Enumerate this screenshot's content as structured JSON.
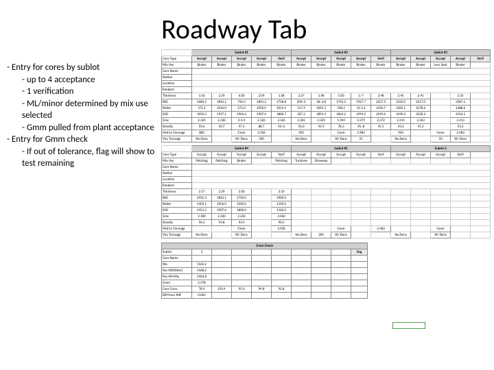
{
  "title": "Roadway Tab",
  "bullets": {
    "b1": "Entry for cores by sublot",
    "b1a": "up to 4 acceptance",
    "b1b": "1 verification",
    "b1c": "ML/minor determined by mix use selected",
    "b1d": "Gmm pulled from plant acceptance",
    "b2": "Entry for Gmm check",
    "b2a": "If out of tolerance, flag will show to test remaining"
  },
  "sublots": {
    "group_labels": [
      "Sublot #1",
      "Sublot #2",
      "Sublot #3"
    ],
    "col_labels": [
      "Accept",
      "Accept",
      "Accept",
      "Accept",
      "Verif"
    ],
    "row_labels": [
      "Core Type",
      "Mix Use",
      "Core Name",
      "Station",
      "Location",
      "Random",
      "Thickness",
      "BSG",
      "Water",
      "SSD",
      "Gmc",
      "Density",
      "Mat-Ln Tonnage",
      "Visc Tonnage"
    ],
    "row1": {
      "ct": [
        "Binder",
        "Binder",
        "Binder",
        "Binder",
        "Binder",
        "Binder",
        "Binder",
        "Binder",
        "Binder",
        "Binder",
        "Binder",
        "Binder",
        "Lens Spot",
        "Binder"
      ],
      "thk": [
        "1.56",
        "2.29",
        "6.00",
        "2.09",
        "1.58",
        "2.27",
        "1.98",
        "5.00",
        "2.-7",
        "2.48",
        "2.45",
        "2.41",
        "",
        "2.35"
      ],
      "bsg": [
        "1684.2",
        "1812.1",
        "750.3",
        "1891.2",
        "1758.8",
        "204.-3",
        "18.-3.8",
        "1750.2",
        "1927.7",
        "2227.5",
        "2322.0",
        "2217.0",
        "",
        "2387.1"
      ],
      "water": [
        "371.1",
        "1016.0",
        "275.0",
        "1050.0",
        "1031.4",
        "117.4",
        "1045.3",
        "598.2",
        "11-3.1",
        "1296.7",
        "1281.5",
        "1278.6",
        "",
        "1388.6"
      ],
      "ssd": [
        "1095.5",
        "1917.1",
        "1901.6",
        "1907.6",
        "1800.7",
        "207.2",
        "1891.4",
        "1824.2",
        "1944.2",
        "2249.6",
        "2340.3",
        "2230.3",
        "",
        "2412.5"
      ],
      "gmc": [
        "2.324",
        "2.330",
        "2.4-4",
        "2.326",
        "2.326",
        "2.302",
        "2.329",
        "1.944",
        "2.379",
        "2.372",
        "2.314",
        "2.363",
        "",
        "2.313"
      ],
      "den": [
        "93.6",
        "93.7",
        "97.1",
        "88.7",
        "93.-6",
        "93.0",
        "93.9",
        "78.3",
        "95.-8",
        "95.5",
        "93.2",
        "95.2",
        "",
        "93.2"
      ],
      "mlt": [
        "800",
        "",
        "Gmm",
        "2.436",
        "",
        "950",
        "",
        "Gmm",
        "2.483",
        "",
        "950",
        "",
        "Gmm",
        "2.483"
      ],
      "vt": [
        "No Dens",
        "",
        "W/ Dens",
        "500",
        "",
        "No Dens",
        "",
        "W/ Dens",
        "55",
        "",
        "No Dens",
        "",
        "50",
        "W/ Dens"
      ]
    },
    "group_labels2": [
      "Sublot #4",
      "Sublot #5",
      "Sublot 6"
    ],
    "row2": {
      "ct": [
        "Accept",
        "Accept",
        "Accept",
        "Accept",
        "Verif",
        "Accept",
        "Accept",
        "Accept",
        "Accept",
        "Verif",
        "Accept",
        "Accept",
        "Accept",
        "Verif"
      ],
      "mu": [
        "Patching",
        "Patching",
        "Binder",
        "",
        "Patching",
        "Turnlane",
        "Driveway",
        "",
        "",
        "",
        "",
        "",
        "",
        ""
      ],
      "thk": [
        "2.17",
        "2.29",
        "2.00",
        "",
        "2.10",
        "",
        "",
        "",
        "",
        "",
        "",
        "",
        "",
        ""
      ],
      "bsg": [
        "2415.3",
        "1812.1",
        "1750.0",
        "",
        "1900.0",
        "",
        "",
        "",
        "",
        "",
        "",
        "",
        "",
        ""
      ],
      "water": [
        "1401.1",
        "1056.0",
        "1020.0",
        "",
        "1120.0",
        "",
        "",
        "",
        "",
        "",
        "",
        "",
        "",
        ""
      ],
      "ssd": [
        "2451.5",
        "1907.6",
        "1800.0",
        "",
        "1120.0",
        "",
        "",
        "",
        "",
        "",
        "",
        "",
        "",
        ""
      ],
      "gmc": [
        "2.300",
        "2.330",
        "2.250",
        "",
        "2.050",
        "",
        "",
        "",
        "",
        "",
        "",
        "",
        "",
        ""
      ],
      "den": [
        "96.3",
        "93.8",
        "93.9",
        "",
        "90.5",
        "",
        "",
        "",
        "",
        "",
        "",
        "",
        "",
        ""
      ],
      "mlt": [
        "",
        "",
        "Gmm",
        "",
        "3.436",
        "",
        "",
        "Gmm",
        "",
        "2.483",
        "",
        "",
        "Gmm",
        ""
      ],
      "vt": [
        "No Dens",
        "",
        "W/ Dens",
        "",
        "",
        "No Dens",
        "200",
        "W/ Dens",
        "",
        "",
        "No Dens",
        "",
        "W/ Dens",
        ""
      ]
    }
  },
  "gmm": {
    "title": "Gmm Check",
    "rows": [
      "Sublot",
      "Core Name",
      "Wa",
      "Pyc+W(Water)",
      "Pyc+W+Mix",
      "Gmm",
      "Core Conn.",
      "Diff from JMF"
    ],
    "c0": [
      "3",
      "",
      "1562.2",
      "1468.2",
      "2463.8",
      "2.478",
      "78.9",
      "0.003"
    ],
    "avg_label": "Avg",
    "under": [
      "103.4",
      "95.6",
      "94.8",
      "91.8"
    ]
  },
  "colors": {
    "grid": "#888888",
    "hdr": "#d0d0d0",
    "accent": "#4a9e4a"
  }
}
